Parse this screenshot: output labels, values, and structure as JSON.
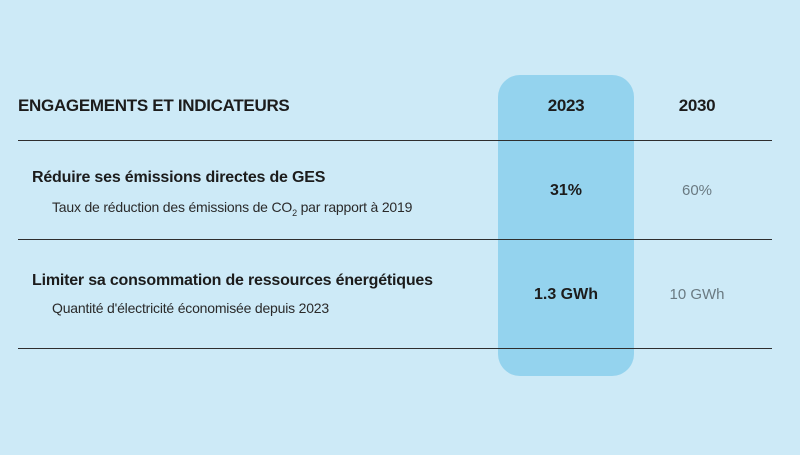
{
  "header": {
    "title": "ENGAGEMENTS ET INDICATEURS",
    "col_2023": "2023",
    "col_2030": "2030"
  },
  "rows": [
    {
      "title": "Réduire ses émissions directes de GES",
      "subtitle_pre": "Taux de réduction des émissions de CO",
      "subtitle_sub": "2",
      "subtitle_post": " par rapport à 2019",
      "value_2023": "31%",
      "value_2030": "60%"
    },
    {
      "title": "Limiter sa consommation de ressources énergétiques",
      "subtitle": "Quantité d'électricité économisée depuis 2023",
      "value_2023": "1.3 GWh",
      "value_2030": "10 GWh"
    }
  ],
  "colors": {
    "background": "#cdeaf7",
    "highlight_column": "#94d3ee",
    "rule": "#2e2e2e",
    "target_value": "#6a7a82"
  }
}
